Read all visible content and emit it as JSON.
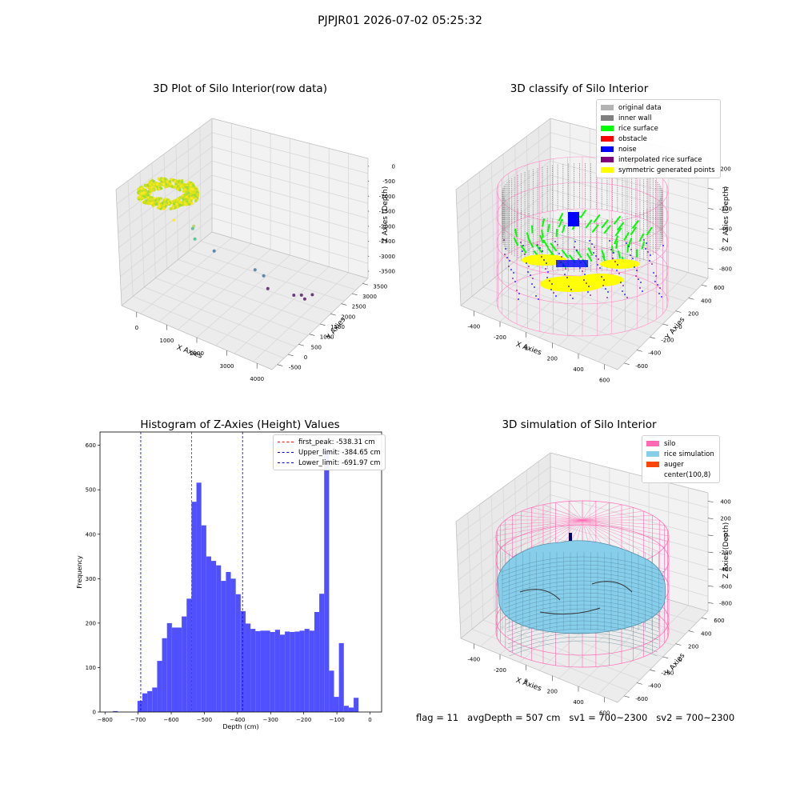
{
  "suptitle": "PJPJR01 2026-07-02 05:25:32",
  "chart_data": [
    {
      "type": "scatter",
      "title": "3D Plot of Silo Interior(row data)",
      "xlabel": "X Axies",
      "ylabel": "Y Axies",
      "zlabel": "Z Axies (Depth)",
      "x_ticks": [
        "0",
        "1000",
        "2000",
        "3000",
        "4000"
      ],
      "y_ticks": [
        "-500",
        "0",
        "500",
        "1000",
        "1500",
        "2000",
        "2500",
        "3000",
        "3500"
      ],
      "z_ticks": [
        "0",
        "-500",
        "-1000",
        "-1500",
        "-2000",
        "-2500",
        "-3000",
        "-3500"
      ],
      "xlim": [
        -500,
        4200
      ],
      "ylim": [
        -700,
        3700
      ],
      "zlim": [
        -3900,
        200
      ],
      "colormap": [
        "#440154",
        "#31688e",
        "#35b779",
        "#a0da39",
        "#fde725"
      ],
      "points": [
        {
          "x": 800,
          "y": -200,
          "z": -500,
          "c": 0.9
        },
        {
          "x": 1100,
          "y": 300,
          "z": -900,
          "c": 0.7
        },
        {
          "x": 1000,
          "y": 400,
          "z": -1100,
          "c": 0.55
        },
        {
          "x": 1200,
          "y": 200,
          "z": -1250,
          "c": 0.5
        },
        {
          "x": 1600,
          "y": 500,
          "z": -1700,
          "c": 0.4
        },
        {
          "x": 2600,
          "y": 900,
          "z": -2200,
          "c": 0.3
        },
        {
          "x": 2800,
          "y": 1000,
          "z": -2400,
          "c": 0.3
        },
        {
          "x": 2600,
          "y": 1500,
          "z": -3300,
          "c": 0.2
        },
        {
          "x": 3200,
          "y": 1800,
          "z": -3500,
          "c": 0.1
        },
        {
          "x": 3300,
          "y": 2000,
          "z": -3600,
          "c": 0.1
        },
        {
          "x": 3400,
          "y": 2000,
          "z": -3700,
          "c": 0.15
        },
        {
          "x": 3500,
          "y": 2200,
          "z": -3650,
          "c": 0.12
        }
      ]
    },
    {
      "type": "scatter",
      "title": "3D classify of Silo Interior",
      "xlabel": "X Axies",
      "ylabel": "Y Axies",
      "zlabel": "Z Axies (Depth)",
      "x_ticks": [
        "-400",
        "-200",
        "0",
        "200",
        "400",
        "600"
      ],
      "y_ticks": [
        "-600",
        "-400",
        "-200",
        "0",
        "200",
        "400",
        "600"
      ],
      "z_ticks": [
        "200",
        "0",
        "-200",
        "-400",
        "-600",
        "-800"
      ],
      "legend": [
        {
          "label": "original data",
          "color": "#b3b3b3"
        },
        {
          "label": "inner wall",
          "color": "#808080"
        },
        {
          "label": "rice surface",
          "color": "#00ff00"
        },
        {
          "label": "obstacle",
          "color": "#ff0000"
        },
        {
          "label": "noise",
          "color": "#0000ff"
        },
        {
          "label": "interpolated rice surface",
          "color": "#800080"
        },
        {
          "label": "symmetric generated points",
          "color": "#ffff00"
        }
      ]
    },
    {
      "type": "bar",
      "title": "Histogram of Z-Axies (Height) Values",
      "xlabel": "Depth (cm)",
      "ylabel": "Frequency",
      "xlim": [
        -815,
        35
      ],
      "ylim": [
        0,
        630
      ],
      "x_ticks": [
        -800,
        -700,
        -600,
        -500,
        -400,
        -300,
        -200,
        -100,
        0
      ],
      "y_ticks": [
        0,
        100,
        200,
        300,
        400,
        500,
        600
      ],
      "bar_color": "#5050ff",
      "bin_start": -776,
      "bin_width": 14.83,
      "values": [
        2,
        0,
        0,
        0,
        0,
        25,
        42,
        47,
        55,
        115,
        166,
        200,
        190,
        190,
        215,
        255,
        473,
        516,
        420,
        350,
        340,
        330,
        295,
        315,
        300,
        265,
        227,
        199,
        187,
        182,
        183,
        183,
        180,
        185,
        174,
        181,
        180,
        181,
        183,
        187,
        183,
        225,
        266,
        590,
        93,
        34,
        155,
        14,
        10,
        32
      ],
      "lines": [
        {
          "label": "first_peak: -538.31 cm",
          "x": -538.31,
          "color": "#ff0000"
        },
        {
          "label": "Upper_limit: -384.65 cm",
          "x": -384.65,
          "color": "#0000cc"
        },
        {
          "label": "Lower_limit: -691.97 cm",
          "x": -691.97,
          "color": "#0000cc"
        }
      ]
    },
    {
      "type": "area",
      "title": "3D simulation of Silo Interior",
      "xlabel": "X Axies",
      "ylabel": "Y Axies",
      "zlabel": "Z Axies (Depth)",
      "x_ticks": [
        "-400",
        "-200",
        "0",
        "200",
        "400",
        "600"
      ],
      "y_ticks": [
        "-600",
        "-400",
        "-200",
        "0",
        "200",
        "400",
        "600"
      ],
      "z_ticks": [
        "400",
        "200",
        "0",
        "-200",
        "-400",
        "-600",
        "-800"
      ],
      "legend": [
        {
          "label": "silo",
          "color": "#ff69b4"
        },
        {
          "label": "rice simulation",
          "color": "#87ceeb"
        },
        {
          "label": "auger",
          "color": "#ff4500"
        },
        {
          "label": "center(100,8)",
          "color": ""
        }
      ]
    }
  ],
  "status": {
    "flag": "flag = 11",
    "avg_depth": "avgDepth = 507 cm",
    "sv1": "sv1 = 700~2300",
    "sv2": "sv2 = 700~2300"
  }
}
